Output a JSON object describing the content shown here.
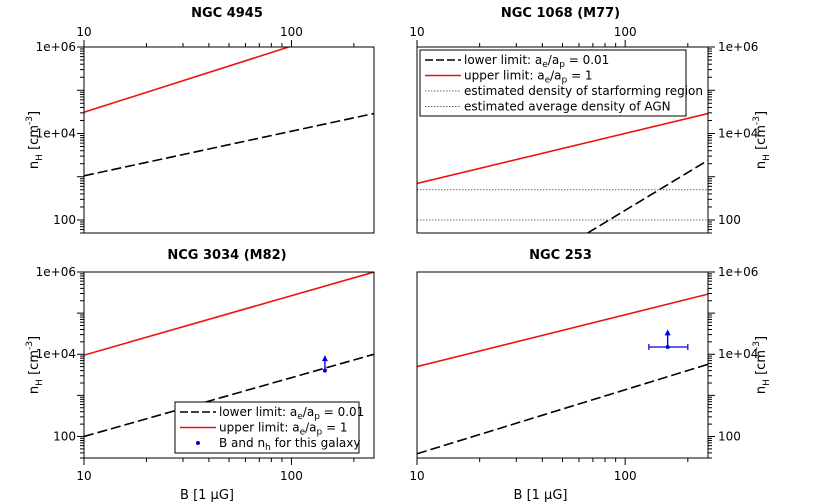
{
  "chart_data": [
    {
      "type": "line",
      "title": "NGC 4945",
      "xscale": "log",
      "yscale": "log",
      "xlim": [
        10,
        250
      ],
      "ylim": [
        50,
        1000000
      ],
      "xticklabels": [
        "10",
        "100"
      ],
      "yticklabels": [
        "100",
        "1e+04",
        "1e+06"
      ],
      "ylabel": "n_H [cm^-3]",
      "xaxis_position": "top",
      "yaxis_position": "left",
      "series": [
        {
          "name": "upper limit: a_e/a_p = 1",
          "color": "#ee1111",
          "dash": "solid",
          "x": [
            10,
            97
          ],
          "y": [
            31000,
            1000000
          ]
        },
        {
          "name": "lower limit: a_e/a_p = 0.01",
          "color": "#000000",
          "dash": "dashed",
          "x": [
            10,
            250
          ],
          "y": [
            1050,
            29000
          ]
        }
      ]
    },
    {
      "type": "line",
      "title": "NGC 1068 (M77)",
      "xscale": "log",
      "yscale": "log",
      "xlim": [
        10,
        250
      ],
      "ylim": [
        50,
        1000000
      ],
      "xticklabels": [
        "10",
        "100"
      ],
      "yticklabels": [
        "100",
        "1e+04",
        "1e+06"
      ],
      "ylabel": "n_H [cm^-3]",
      "xaxis_position": "top",
      "yaxis_position": "right",
      "legend_position": "top",
      "series": [
        {
          "name": "lower limit: a_e/a_p = 0.01",
          "color": "#000000",
          "dash": "dashed",
          "x": [
            66,
            250
          ],
          "y": [
            50,
            2400
          ]
        },
        {
          "name": "upper limit: a_e/a_p = 1",
          "color": "#ee1111",
          "dash": "solid",
          "x": [
            10,
            250
          ],
          "y": [
            700,
            29000
          ]
        },
        {
          "name": "estimated density of starforming region",
          "color": "#666666",
          "dash": "dotted",
          "x": [
            10,
            250
          ],
          "y": [
            500,
            500
          ]
        },
        {
          "name": "estimated average density of AGN",
          "color": "#666666",
          "dash": "dotted",
          "x": [
            10,
            250
          ],
          "y": [
            100,
            100
          ]
        }
      ]
    },
    {
      "type": "line",
      "title": "NCG 3034 (M82)",
      "xscale": "log",
      "yscale": "log",
      "xlim": [
        10,
        250
      ],
      "ylim": [
        30,
        1000000
      ],
      "xticklabels": [
        "10",
        "100"
      ],
      "yticklabels": [
        "100",
        "1e+04",
        "1e+06"
      ],
      "xlabel": "B [1 μG]",
      "ylabel": "n_H [cm^-3]",
      "xaxis_position": "bottom",
      "yaxis_position": "left",
      "legend_position": "bottom-right",
      "series": [
        {
          "name": "lower limit: a_e/a_p = 0.01",
          "color": "#000000",
          "dash": "dashed",
          "x": [
            10,
            250
          ],
          "y": [
            100,
            10000
          ]
        },
        {
          "name": "upper limit: a_e/a_p = 1",
          "color": "#ee1111",
          "dash": "solid",
          "x": [
            10,
            250
          ],
          "y": [
            9500,
            1000000
          ]
        }
      ],
      "points": [
        {
          "name": "B and n_h for this galaxy",
          "color": "#0000dd",
          "x": 145,
          "y": 4000,
          "arrow_up_to": 9000
        }
      ]
    },
    {
      "type": "line",
      "title": "NGC 253",
      "xscale": "log",
      "yscale": "log",
      "xlim": [
        10,
        250
      ],
      "ylim": [
        30,
        1000000
      ],
      "xticklabels": [
        "10",
        "100"
      ],
      "yticklabels": [
        "100",
        "1e+04",
        "1e+06"
      ],
      "xlabel": "B [1 μG]",
      "ylabel": "n_H [cm^-3]",
      "xaxis_position": "bottom",
      "yaxis_position": "right",
      "series": [
        {
          "name": "lower limit: a_e/a_p = 0.01",
          "color": "#000000",
          "dash": "dashed",
          "x": [
            10,
            250
          ],
          "y": [
            38,
            5700
          ]
        },
        {
          "name": "upper limit: a_e/a_p = 1",
          "color": "#ee1111",
          "dash": "solid",
          "x": [
            10,
            250
          ],
          "y": [
            5000,
            290000
          ]
        }
      ],
      "points": [
        {
          "name": "B and n_h for this galaxy",
          "color": "#0000dd",
          "x": 160,
          "y": 15000,
          "xerr": [
            130,
            200
          ],
          "arrow_up_to": 38000
        }
      ]
    }
  ],
  "legends": {
    "ngc1068": [
      {
        "type": "dashed",
        "color": "#000000",
        "label_main": "lower limit: a",
        "sub1": "e",
        "mid": "/a",
        "sub2": "p",
        "tail": " = 0.01"
      },
      {
        "type": "solid",
        "color": "#ee1111",
        "label_main": "upper limit: a",
        "sub1": "e",
        "mid": "/a",
        "sub2": "p",
        "tail": " = 1"
      },
      {
        "type": "dotted",
        "color": "#666666",
        "label": "estimated density of starforming region"
      },
      {
        "type": "dotted",
        "color": "#666666",
        "label": "estimated average density of AGN"
      }
    ],
    "m82": [
      {
        "type": "dashed",
        "color": "#000000",
        "label_main": "lower limit: a",
        "sub1": "e",
        "mid": "/a",
        "sub2": "p",
        "tail": " = 0.01"
      },
      {
        "type": "solid",
        "color": "#ee1111",
        "label_main": "upper limit: a",
        "sub1": "e",
        "mid": "/a",
        "sub2": "p",
        "tail": " = 1"
      },
      {
        "type": "point",
        "color": "#0000dd",
        "label": "B and n",
        "sub1": "h",
        "tail": " for this galaxy"
      }
    ]
  },
  "axis_text": {
    "ylabel_main": "n",
    "ylabel_sub": "H",
    "ylabel_tail": " [cm",
    "ylabel_sup": "-3",
    "ylabel_end": "]",
    "xlabel": "B [1 μG]"
  }
}
